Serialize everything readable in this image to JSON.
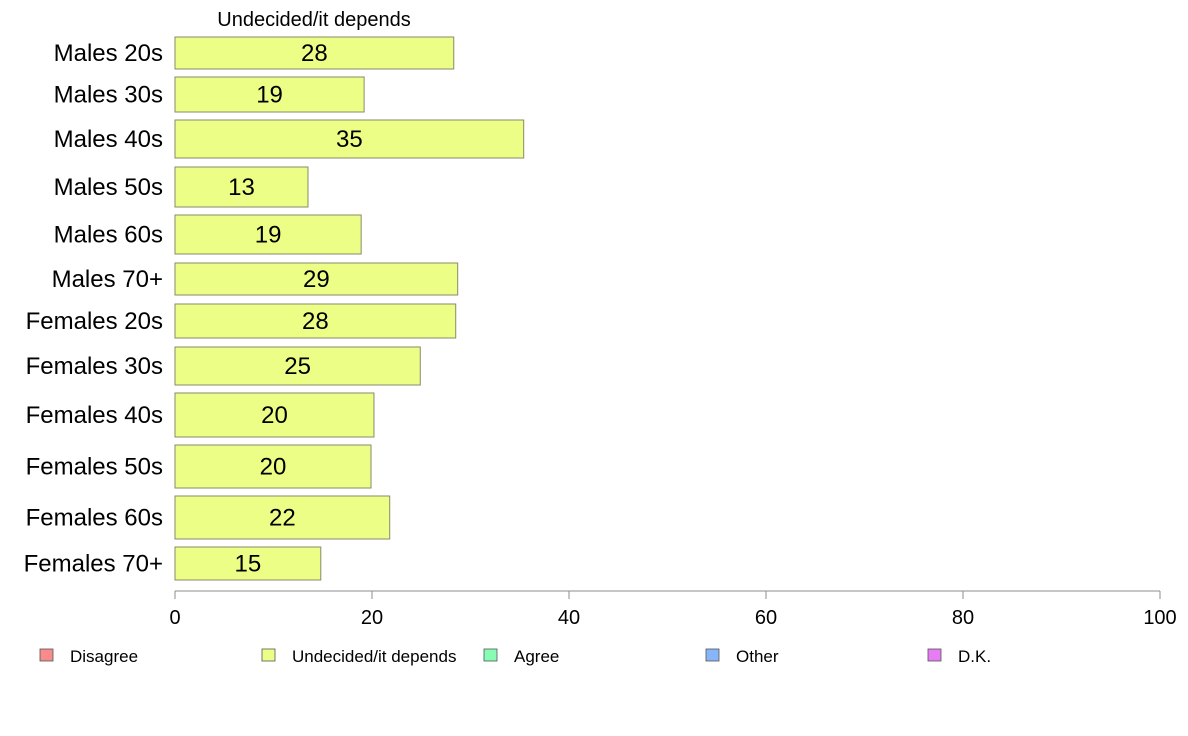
{
  "chart_data": {
    "type": "bar",
    "orientation": "horizontal",
    "title": "",
    "series_title": "Undecided/it depends",
    "categories": [
      "Males 20s",
      "Males 30s",
      "Males 40s",
      "Males 50s",
      "Males 60s",
      "Males 70+",
      "Females 20s",
      "Females 30s",
      "Females 40s",
      "Females 50s",
      "Females 60s",
      "Females 70+"
    ],
    "values": [
      28.3,
      19.2,
      35.4,
      13.5,
      18.9,
      28.7,
      28.5,
      24.9,
      20.2,
      19.9,
      21.8,
      14.8
    ],
    "value_labels": [
      "28",
      "19",
      "35",
      "13",
      "19",
      "29",
      "28",
      "25",
      "20",
      "20",
      "22",
      "15"
    ],
    "xlim": [
      0,
      100
    ],
    "xticks": [
      0,
      20,
      40,
      60,
      80,
      100
    ],
    "bar_color": "#ecfe86",
    "bar_border_color": "#8a8a6a",
    "grid": false,
    "legend_position": "bottom",
    "legend": [
      {
        "name": "Disagree",
        "color": "#f88b8b"
      },
      {
        "name": "Undecided/it depends",
        "color": "#ecfe86"
      },
      {
        "name": "Agree",
        "color": "#86fcb4"
      },
      {
        "name": "Other",
        "color": "#86b6f8"
      },
      {
        "name": "D.K.",
        "color": "#e77cf4"
      }
    ]
  }
}
